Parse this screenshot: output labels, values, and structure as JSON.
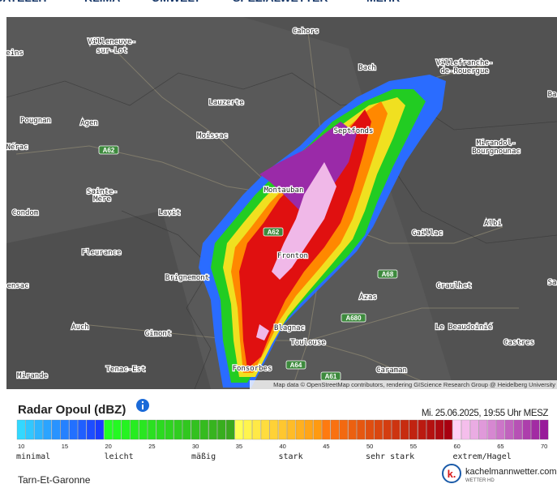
{
  "nav": [
    "SATELLIT",
    "KLIMA",
    "UMWELT",
    "SPEZIALWETTER",
    "MEHR"
  ],
  "map": {
    "places": [
      "eins",
      "Villeneuve-",
      "sur-Lot",
      "Cahors",
      "Villefranche-",
      "de-Rouergue",
      "Bach",
      "Ba",
      "Lauzerte",
      "Pougnan",
      "Agen",
      "Nérac",
      "Moissac",
      "Septfonds",
      "Mirandol-",
      "Bourgnounac",
      "Sainte-",
      "Mère",
      "Condom",
      "Lavit",
      "Montauban",
      "Gaillac",
      "Albi",
      "Fleurance",
      "Fronton",
      "Brignemont",
      "ensac",
      "Graulhet",
      "Sa",
      "Azas",
      "Auch",
      "Gimont",
      "Blagnac",
      "Le Beaudoinié",
      "Toulouse",
      "Castres",
      "Tenac-Est",
      "Caraman",
      "Mirande",
      "Fonsorbes"
    ],
    "roads": [
      "A62",
      "A62",
      "A68",
      "A680",
      "A64",
      "A61"
    ],
    "attribution": "Map data © OpenStreetMap contributors, rendering GIScience Research Group @ Heidelberg University"
  },
  "legend": {
    "title": "Radar Opoul (dBZ)",
    "timestamp": "Mi. 25.06.2025, 19:55 Uhr MESZ",
    "ticks": [
      10,
      15,
      20,
      25,
      30,
      35,
      40,
      45,
      50,
      55,
      60,
      65,
      70
    ],
    "categories": [
      "minimal",
      "leicht",
      "mäßig",
      "stark",
      "sehr stark",
      "extrem/Hagel"
    ]
  },
  "footer": {
    "region": "Tarn-Et-Garonne",
    "logo": "k.",
    "brand": "kachelmannwetter.com",
    "brand_sub": "WETTER HD"
  }
}
